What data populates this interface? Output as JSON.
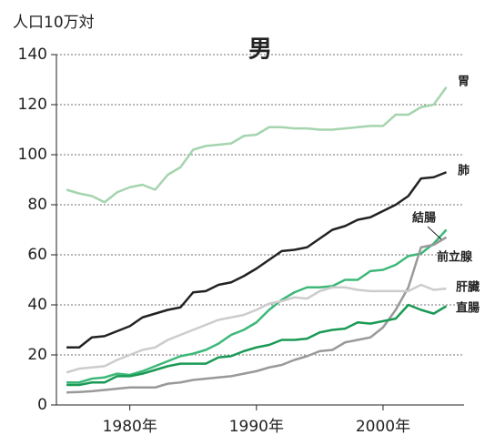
{
  "chart_data": {
    "type": "line",
    "title": "男",
    "y_label": "人口10万対",
    "x": [
      1975,
      1976,
      1977,
      1978,
      1979,
      1980,
      1981,
      1982,
      1983,
      1984,
      1985,
      1986,
      1987,
      1988,
      1989,
      1990,
      1991,
      1992,
      1993,
      1994,
      1995,
      1996,
      1997,
      1998,
      1999,
      2000,
      2001,
      2002,
      2003,
      2004,
      2005
    ],
    "series": [
      {
        "name": "胃",
        "color": "#a5d4ae",
        "values": [
          86,
          84.5,
          83.5,
          81,
          85,
          87,
          88,
          86,
          92,
          95,
          102,
          103.5,
          104,
          104.5,
          107.5,
          108,
          111,
          111,
          110.5,
          110.5,
          110,
          110,
          110.5,
          111,
          111.5,
          111.5,
          116,
          116,
          119,
          120,
          127
        ]
      },
      {
        "name": "肺",
        "color": "#222222",
        "values": [
          23,
          23,
          27,
          27.5,
          29.5,
          31.5,
          35,
          36.5,
          38,
          39,
          45,
          45.5,
          48,
          49,
          51.5,
          54.5,
          58,
          61.5,
          62,
          63,
          66.5,
          70,
          71.5,
          74,
          75,
          77.5,
          80,
          83.5,
          90.5,
          91,
          93
        ]
      },
      {
        "name": "結腸",
        "color": "#3cb878",
        "values": [
          9,
          9,
          10.5,
          11,
          12.5,
          12,
          13.5,
          15.5,
          17.5,
          19.5,
          20.5,
          22,
          24.5,
          28,
          30,
          33,
          38,
          42,
          45,
          47,
          47,
          47.5,
          50,
          50,
          53.5,
          54,
          56,
          59.5,
          60.5,
          64.5,
          70
        ]
      },
      {
        "name": "前立腺",
        "color": "#999999",
        "values": [
          5,
          5.2,
          5.5,
          6,
          6.5,
          7,
          7,
          7,
          8.5,
          9,
          10,
          10.5,
          11,
          11.5,
          12.5,
          13.5,
          15,
          16,
          18,
          19.5,
          21.5,
          22,
          25,
          26,
          27,
          31,
          38,
          47,
          63,
          64,
          67
        ]
      },
      {
        "name": "肝臓",
        "color": "#cccccc",
        "values": [
          13,
          14.5,
          15,
          15.5,
          18,
          20,
          22,
          23,
          26,
          28,
          30,
          32,
          34,
          35,
          36,
          38,
          40.5,
          41.5,
          43,
          42.5,
          45.5,
          47,
          47,
          46,
          45.5,
          45.5,
          45.5,
          45.5,
          48,
          46,
          46.5
        ]
      },
      {
        "name": "直腸",
        "color": "#1a9a55",
        "values": [
          8,
          8,
          9,
          9,
          11.5,
          11.5,
          12.5,
          14,
          15.5,
          16.5,
          16.5,
          16.5,
          19,
          19.5,
          21.5,
          23,
          24,
          26,
          26,
          26.5,
          29,
          30,
          30.5,
          33,
          32.5,
          33.5,
          34.5,
          40,
          38,
          36.5,
          39.5
        ]
      }
    ],
    "xlim": [
      1974.2,
      2006.4
    ],
    "xticks": [
      {
        "value": 1980,
        "label": "1980年"
      },
      {
        "value": 1990,
        "label": "1990年"
      },
      {
        "value": 2000,
        "label": "2000年"
      }
    ],
    "ylim": [
      0,
      140
    ],
    "yticks": [
      0,
      20,
      40,
      60,
      80,
      100,
      120,
      140
    ],
    "grid": true
  }
}
